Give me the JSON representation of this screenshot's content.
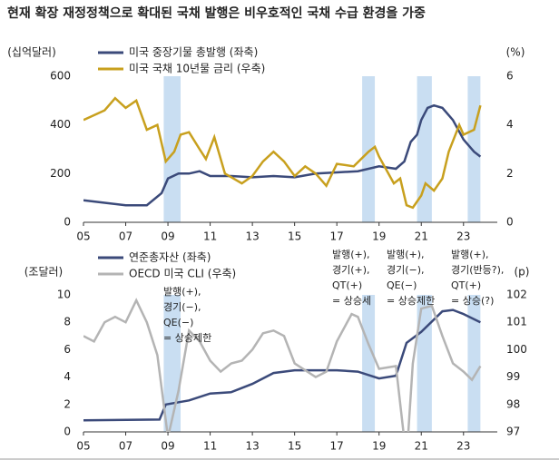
{
  "title": "현재 확장 재정정책으로 확대된 국채 발행은 비우호적인 국채 수급 환경을 가중",
  "chart_data": [
    {
      "type": "line",
      "y_label": "(십억달러)",
      "y2_label": "(%)",
      "xlim": [
        2005,
        2024.6
      ],
      "ylim": [
        0,
        600
      ],
      "y2lim": [
        0,
        6
      ],
      "xticks": [
        {
          "value": 2005,
          "label": "05"
        },
        {
          "value": 2007,
          "label": "07"
        },
        {
          "value": 2009,
          "label": "09"
        },
        {
          "value": 2011,
          "label": "11"
        },
        {
          "value": 2013,
          "label": "13"
        },
        {
          "value": 2015,
          "label": "15"
        },
        {
          "value": 2017,
          "label": "17"
        },
        {
          "value": 2019,
          "label": "19"
        },
        {
          "value": 2021,
          "label": "21"
        },
        {
          "value": 2023,
          "label": "23"
        }
      ],
      "yticks": [
        0,
        200,
        400,
        600
      ],
      "y2ticks": [
        0,
        2,
        4,
        6
      ],
      "highlights": [
        [
          2008.8,
          2009.6
        ],
        [
          2018.2,
          2018.8
        ],
        [
          2020.8,
          2021.5
        ],
        [
          2023.2,
          2023.8
        ]
      ],
      "series": [
        {
          "name": "미국 중장기물 총발행 (좌축)",
          "color": "#3b4a7a",
          "x": [
            2005,
            2006,
            2007,
            2008,
            2008.7,
            2009,
            2009.5,
            2010,
            2010.5,
            2011,
            2012,
            2013,
            2014,
            2015,
            2016,
            2017,
            2018,
            2019,
            2019.8,
            2020.2,
            2020.5,
            2020.8,
            2021,
            2021.3,
            2021.6,
            2022,
            2022.5,
            2023,
            2023.5,
            2023.8
          ],
          "values": [
            90,
            80,
            70,
            70,
            120,
            180,
            200,
            200,
            210,
            190,
            190,
            185,
            190,
            185,
            200,
            205,
            210,
            230,
            220,
            250,
            330,
            360,
            420,
            470,
            480,
            470,
            420,
            340,
            290,
            270
          ]
        },
        {
          "name": "미국 국채 10년물 금리 (우축)",
          "color": "#c8a01e",
          "axis": "y2",
          "x": [
            2005,
            2006,
            2006.5,
            2007,
            2007.5,
            2008,
            2008.5,
            2008.9,
            2009.3,
            2009.6,
            2010,
            2010.5,
            2010.8,
            2011.2,
            2011.7,
            2012.5,
            2013,
            2013.5,
            2014,
            2014.5,
            2015,
            2015.5,
            2016,
            2016.5,
            2017,
            2017.8,
            2018.5,
            2018.8,
            2019,
            2019.7,
            2020,
            2020.3,
            2020.6,
            2021,
            2021.2,
            2021.6,
            2022,
            2022.3,
            2022.8,
            2023,
            2023.5,
            2023.8
          ],
          "values": [
            4.2,
            4.6,
            5.1,
            4.7,
            5.0,
            3.8,
            4.0,
            2.5,
            2.9,
            3.6,
            3.7,
            3.0,
            2.6,
            3.5,
            2.0,
            1.6,
            1.9,
            2.5,
            2.9,
            2.5,
            1.9,
            2.3,
            2.0,
            1.5,
            2.4,
            2.3,
            2.9,
            3.1,
            2.7,
            1.6,
            1.8,
            0.7,
            0.6,
            1.1,
            1.6,
            1.3,
            1.8,
            2.9,
            4.0,
            3.6,
            3.8,
            4.8
          ]
        }
      ]
    },
    {
      "type": "line",
      "y_label": "(조달러)",
      "y2_label": "(p)",
      "xlim": [
        2005,
        2024.6
      ],
      "ylim": [
        0,
        10
      ],
      "y2lim": [
        97,
        102
      ],
      "xticks": [
        {
          "value": 2005,
          "label": "05"
        },
        {
          "value": 2007,
          "label": "07"
        },
        {
          "value": 2009,
          "label": "09"
        },
        {
          "value": 2011,
          "label": "11"
        },
        {
          "value": 2013,
          "label": "13"
        },
        {
          "value": 2015,
          "label": "15"
        },
        {
          "value": 2017,
          "label": "17"
        },
        {
          "value": 2019,
          "label": "19"
        },
        {
          "value": 2021,
          "label": "21"
        },
        {
          "value": 2023,
          "label": "23"
        }
      ],
      "yticks": [
        0,
        2,
        4,
        6,
        8,
        10
      ],
      "y2ticks": [
        97,
        98,
        99,
        100,
        101,
        102
      ],
      "highlights": [
        [
          2008.8,
          2009.6
        ],
        [
          2018.2,
          2018.8
        ],
        [
          2020.8,
          2021.5
        ],
        [
          2023.2,
          2023.8
        ]
      ],
      "series": [
        {
          "name": "연준총자산 (좌축)",
          "color": "#3b4a7a",
          "x": [
            2005,
            2008.6,
            2008.9,
            2010,
            2011,
            2012,
            2013,
            2014,
            2015,
            2017,
            2018,
            2019,
            2019.8,
            2020.3,
            2021,
            2022,
            2022.5,
            2023,
            2023.8
          ],
          "values": [
            0.85,
            0.9,
            2.0,
            2.3,
            2.8,
            2.9,
            3.5,
            4.3,
            4.5,
            4.5,
            4.4,
            3.9,
            4.1,
            6.5,
            7.3,
            8.8,
            8.9,
            8.6,
            8.0
          ]
        },
        {
          "name": "OECD 미국 CLI (우축)",
          "color": "#b4b4b4",
          "axis": "y2",
          "x": [
            2005,
            2005.5,
            2006,
            2006.5,
            2007,
            2007.5,
            2008,
            2008.5,
            2009,
            2009.5,
            2010,
            2010.5,
            2011,
            2011.5,
            2012,
            2012.5,
            2013,
            2013.5,
            2014,
            2014.5,
            2015,
            2016,
            2016.5,
            2017,
            2017.7,
            2018,
            2018.5,
            2019,
            2019.8,
            2020.3,
            2020.6,
            2021,
            2021.5,
            2022,
            2022.5,
            2023,
            2023.4,
            2023.8
          ],
          "values": [
            100.5,
            100.3,
            101.0,
            101.2,
            101.0,
            101.8,
            101.0,
            99.8,
            96.8,
            98.5,
            100.7,
            100.3,
            99.6,
            99.2,
            99.5,
            99.6,
            100.0,
            100.6,
            100.7,
            100.5,
            99.5,
            99.0,
            99.2,
            100.3,
            101.3,
            101.2,
            100.2,
            99.3,
            99.4,
            96.0,
            99.5,
            101.5,
            101.6,
            100.5,
            99.5,
            99.2,
            98.9,
            99.4
          ]
        }
      ],
      "annotations": [
        {
          "color": "#e0404a",
          "lines": [
            "발행(+),",
            "경기(−),",
            "QE(−)",
            "= 상승제한"
          ]
        },
        {
          "color": "#5aa845",
          "lines": [
            "발행(+),",
            "경기(+),",
            "QT(+)",
            "= 상승세"
          ]
        },
        {
          "color": "#e0404a",
          "lines": [
            "발행(+),",
            "경기(−),",
            "QE(−)",
            "= 상승제한"
          ]
        },
        {
          "color": "#7a3fa0",
          "lines": [
            "발행(+),",
            "경기(반등?),",
            "QT(+)",
            "= 상승(?)"
          ]
        }
      ]
    }
  ]
}
